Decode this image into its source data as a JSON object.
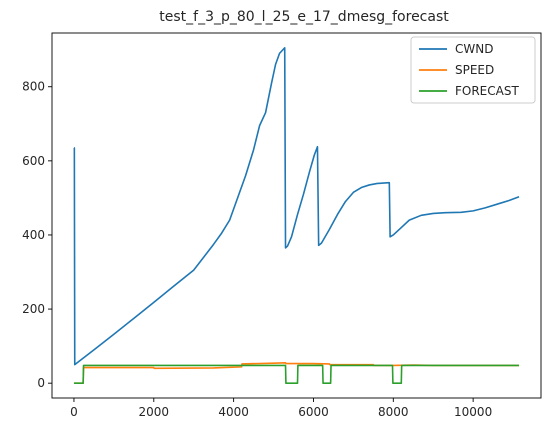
{
  "chart_data": {
    "type": "line",
    "title": "test_f_3_p_80_l_25_e_17_dmesg_forecast",
    "xlabel": "",
    "ylabel": "",
    "xlim": [
      -550,
      11700
    ],
    "ylim": [
      -40,
      945
    ],
    "xticks": [
      0,
      2000,
      4000,
      6000,
      8000,
      10000
    ],
    "yticks": [
      0,
      200,
      400,
      600,
      800
    ],
    "grid": false,
    "legend_position": "top-right",
    "series": [
      {
        "name": "CWND",
        "color": "#1f77b4",
        "points": [
          [
            0,
            635
          ],
          [
            10,
            635
          ],
          [
            20,
            50
          ],
          [
            500,
            90
          ],
          [
            1000,
            132
          ],
          [
            1500,
            175
          ],
          [
            2000,
            218
          ],
          [
            2500,
            262
          ],
          [
            3000,
            305
          ],
          [
            3500,
            375
          ],
          [
            3700,
            405
          ],
          [
            3900,
            440
          ],
          [
            4100,
            500
          ],
          [
            4300,
            560
          ],
          [
            4500,
            630
          ],
          [
            4650,
            695
          ],
          [
            4800,
            730
          ],
          [
            4950,
            810
          ],
          [
            5050,
            860
          ],
          [
            5150,
            890
          ],
          [
            5280,
            905
          ],
          [
            5300,
            365
          ],
          [
            5350,
            370
          ],
          [
            5450,
            395
          ],
          [
            5600,
            455
          ],
          [
            5750,
            510
          ],
          [
            5900,
            570
          ],
          [
            6020,
            615
          ],
          [
            6100,
            638
          ],
          [
            6130,
            372
          ],
          [
            6200,
            378
          ],
          [
            6400,
            415
          ],
          [
            6600,
            455
          ],
          [
            6800,
            490
          ],
          [
            7000,
            515
          ],
          [
            7200,
            528
          ],
          [
            7400,
            535
          ],
          [
            7600,
            539
          ],
          [
            7900,
            541
          ],
          [
            7920,
            395
          ],
          [
            8000,
            400
          ],
          [
            8200,
            420
          ],
          [
            8400,
            440
          ],
          [
            8700,
            453
          ],
          [
            9000,
            458
          ],
          [
            9300,
            460
          ],
          [
            9700,
            461
          ],
          [
            10000,
            465
          ],
          [
            10300,
            473
          ],
          [
            10600,
            483
          ],
          [
            10900,
            493
          ],
          [
            11150,
            503
          ]
        ]
      },
      {
        "name": "SPEED",
        "color": "#ff7f0e",
        "points": [
          [
            0,
            0
          ],
          [
            230,
            0
          ],
          [
            240,
            42
          ],
          [
            1000,
            42
          ],
          [
            2000,
            42
          ],
          [
            2010,
            40
          ],
          [
            3500,
            41
          ],
          [
            4200,
            44
          ],
          [
            4210,
            52
          ],
          [
            5000,
            54
          ],
          [
            5300,
            55
          ],
          [
            5310,
            53
          ],
          [
            6000,
            53
          ],
          [
            6400,
            52
          ],
          [
            6410,
            50
          ],
          [
            7500,
            50
          ],
          [
            7510,
            48
          ],
          [
            8000,
            48
          ],
          [
            8500,
            49
          ],
          [
            9000,
            48
          ],
          [
            11150,
            48
          ]
        ]
      },
      {
        "name": "FORECAST",
        "color": "#2ca02c",
        "points": [
          [
            0,
            0
          ],
          [
            230,
            0
          ],
          [
            240,
            48
          ],
          [
            5300,
            48
          ],
          [
            5310,
            0
          ],
          [
            5600,
            0
          ],
          [
            5610,
            48
          ],
          [
            6230,
            48
          ],
          [
            6240,
            0
          ],
          [
            6430,
            0
          ],
          [
            6440,
            48
          ],
          [
            7980,
            48
          ],
          [
            7990,
            0
          ],
          [
            8200,
            0
          ],
          [
            8210,
            48
          ],
          [
            11150,
            48
          ]
        ]
      }
    ]
  }
}
